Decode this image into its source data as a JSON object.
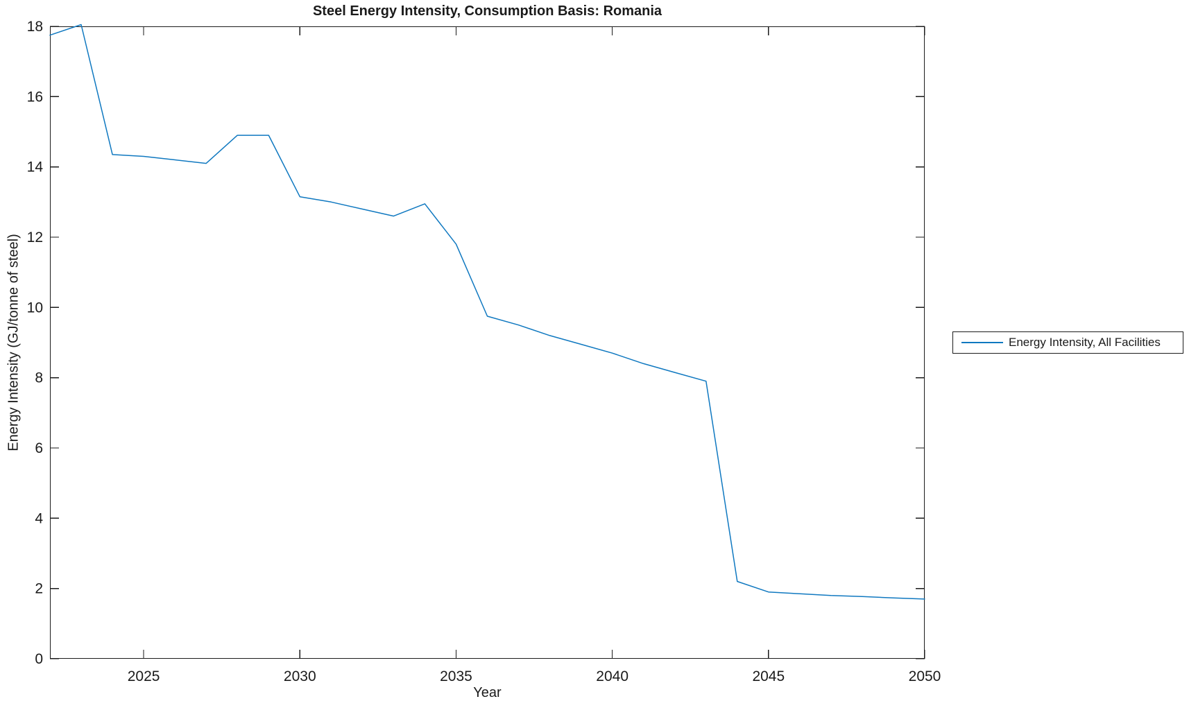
{
  "figure": {
    "title": "Steel Energy Intensity, Consumption Basis: Romania",
    "xlabel": "Year",
    "ylabel": "Energy Intensity (GJ/tonne of steel)"
  },
  "legend": {
    "position": "outside-right",
    "items": [
      {
        "label": "Energy Intensity, All Facilities",
        "color": "#0f78c0"
      }
    ]
  },
  "colors": {
    "line": "#0f78c0",
    "axis": "#1a1a1a",
    "text": "#1a1a1a",
    "background": "#ffffff"
  },
  "chart_data": {
    "type": "line",
    "title": "Steel Energy Intensity, Consumption Basis: Romania",
    "xlabel": "Year",
    "ylabel": "Energy Intensity (GJ/tonne of steel)",
    "xlim": [
      2022,
      2050
    ],
    "ylim": [
      0,
      18
    ],
    "x_ticks": [
      "2025",
      "2030",
      "2035",
      "2040",
      "2045",
      "2050"
    ],
    "y_ticks": [
      "0",
      "2",
      "4",
      "6",
      "8",
      "10",
      "12",
      "14",
      "16",
      "18"
    ],
    "grid": false,
    "legend_position": "outside-right",
    "series": [
      {
        "name": "Energy Intensity, All Facilities",
        "color": "#0f78c0",
        "x": [
          2022,
          2023,
          2024,
          2025,
          2026,
          2027,
          2028,
          2029,
          2030,
          2031,
          2032,
          2033,
          2034,
          2035,
          2036,
          2037,
          2038,
          2039,
          2040,
          2041,
          2042,
          2043,
          2044,
          2045,
          2046,
          2047,
          2048,
          2049,
          2050
        ],
        "y": [
          17.75,
          18.05,
          14.35,
          14.3,
          14.2,
          14.1,
          14.9,
          14.9,
          13.15,
          13.0,
          12.8,
          12.6,
          12.95,
          11.8,
          9.75,
          9.5,
          9.2,
          8.95,
          8.7,
          8.4,
          8.15,
          7.9,
          2.2,
          1.9,
          1.85,
          1.8,
          1.77,
          1.73,
          1.7
        ]
      }
    ]
  }
}
